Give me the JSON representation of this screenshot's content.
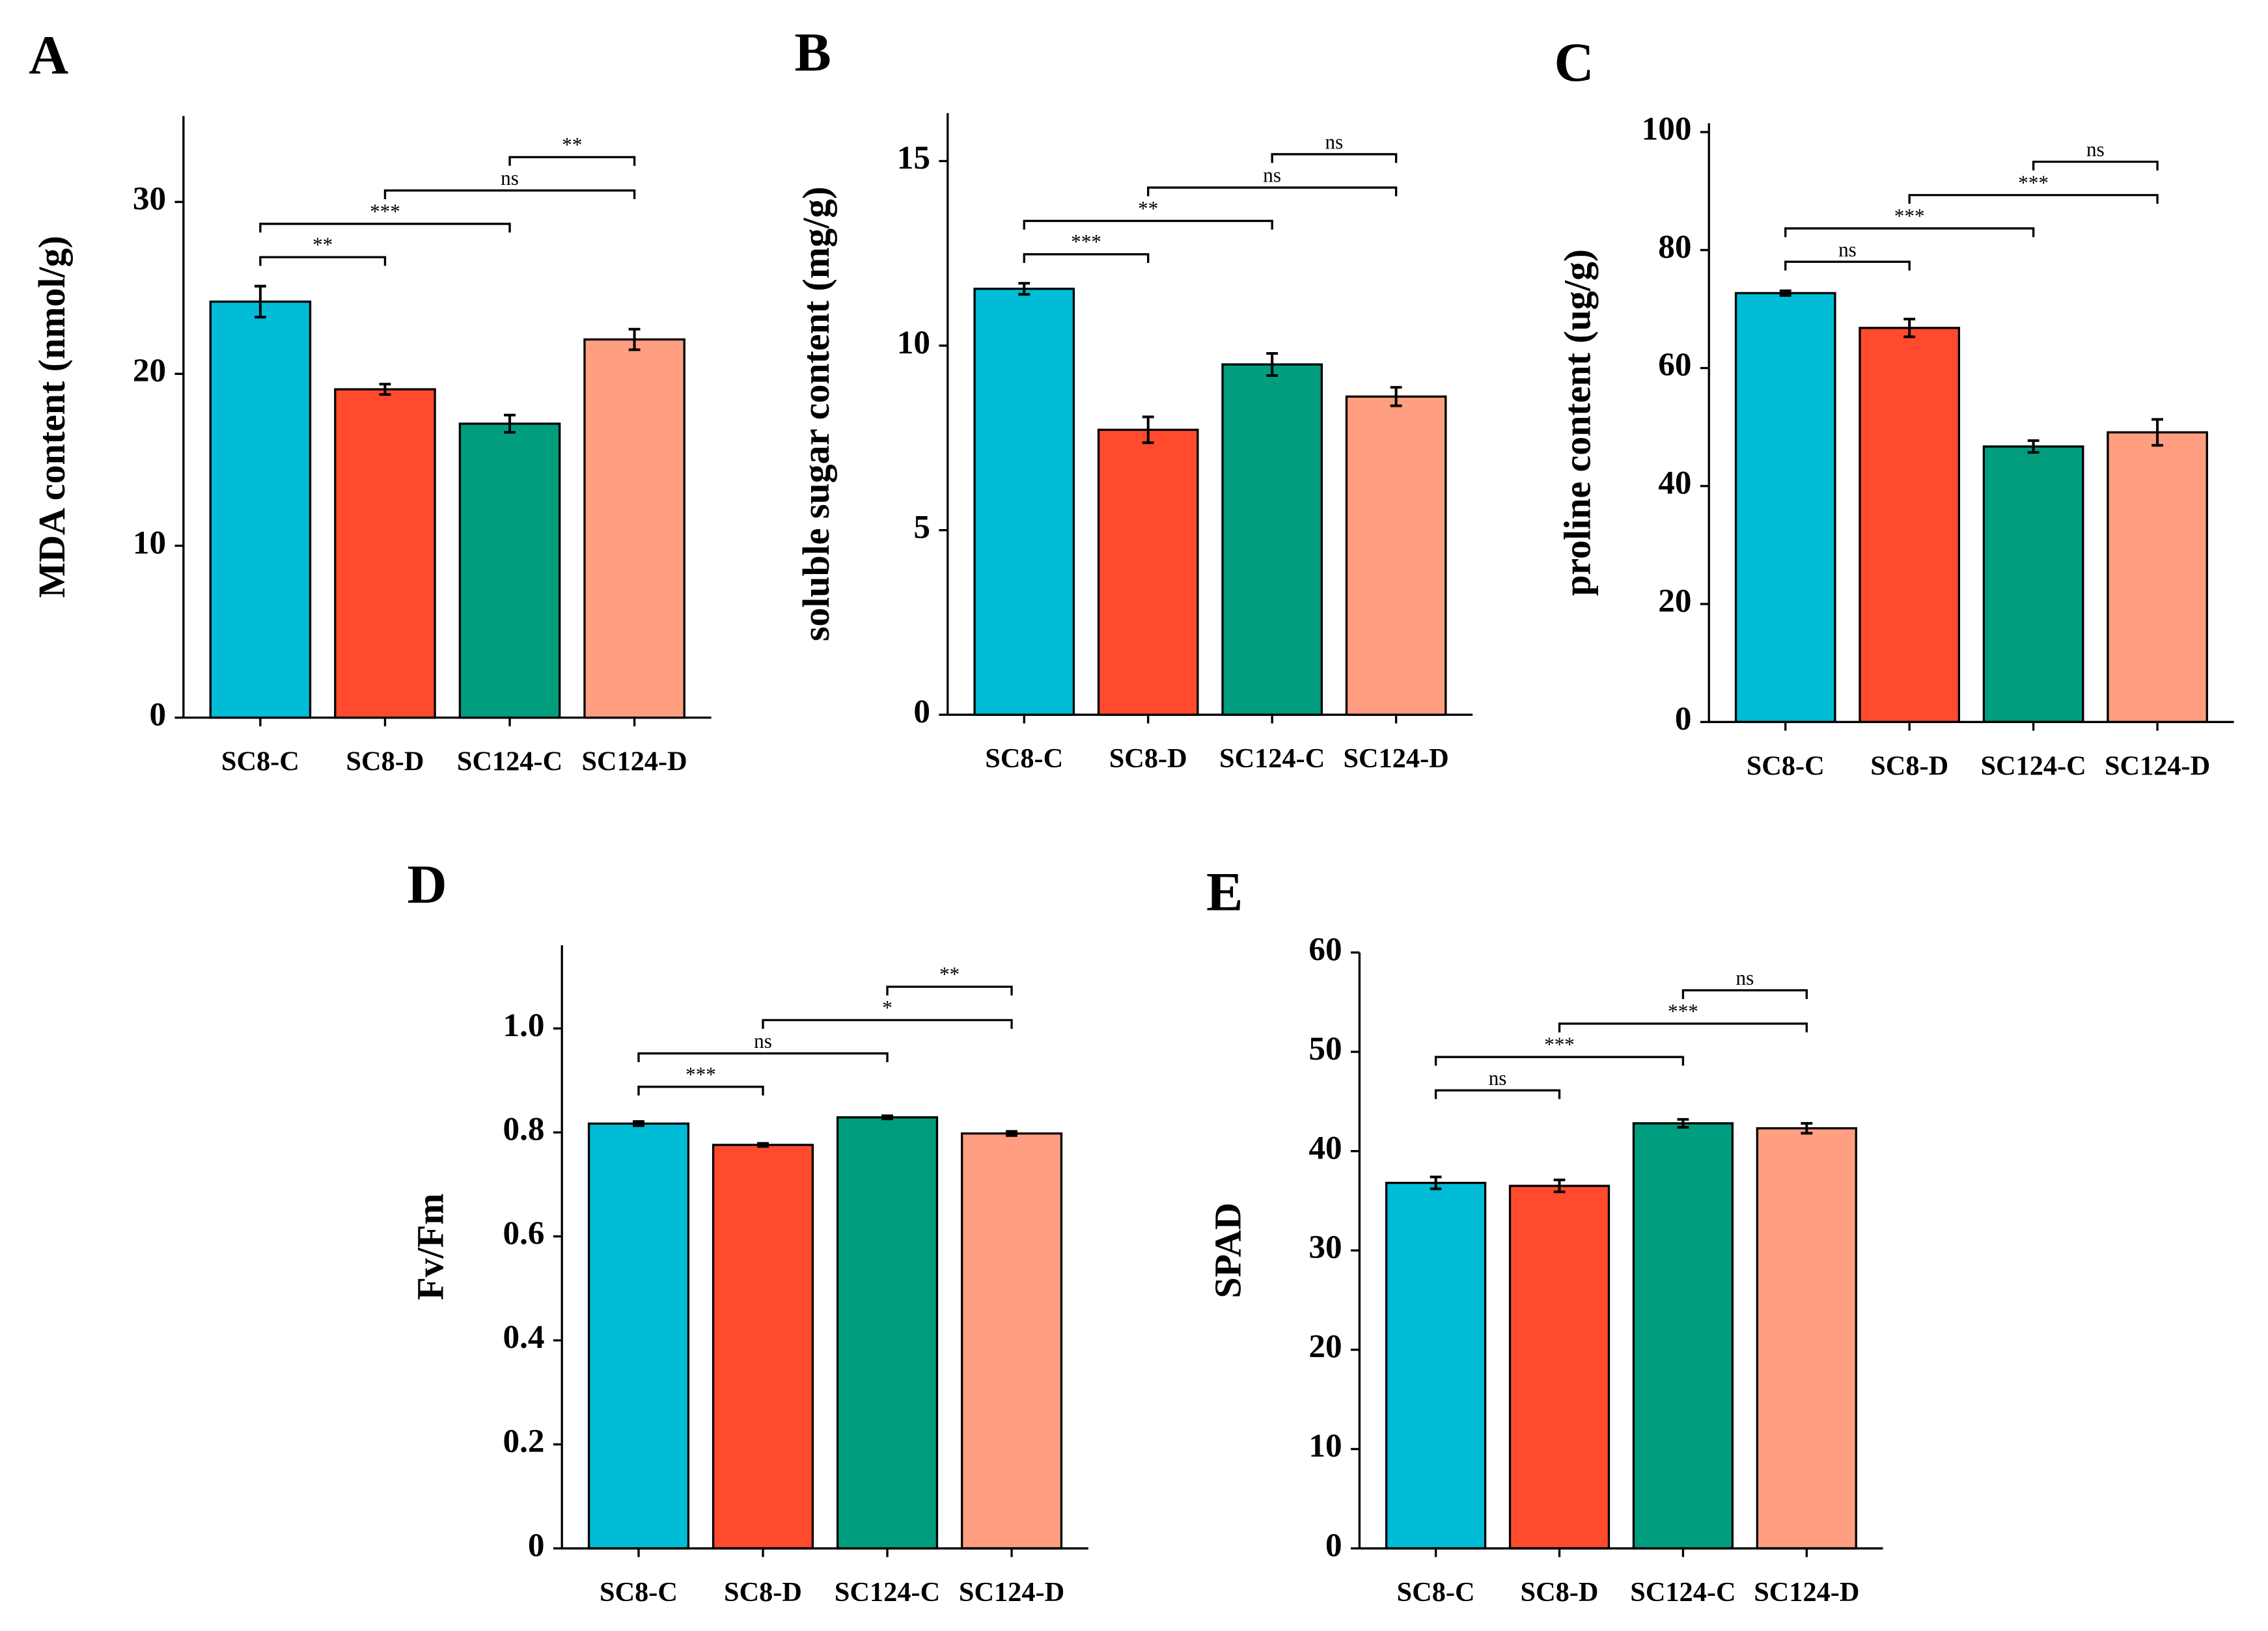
{
  "chart_data": [
    {
      "type": "bar",
      "panel_label": "A",
      "y_label": "MDA content (nmol/g)",
      "categories": [
        "SC8-C",
        "SC8-D",
        "SC124-C",
        "SC124-D"
      ],
      "values": [
        24.2,
        19.1,
        17.1,
        22.0
      ],
      "errors": [
        0.9,
        0.3,
        0.5,
        0.6
      ],
      "colors": [
        "#00BCD6",
        "#FF4A2E",
        "#009E7F",
        "#FF9E80"
      ],
      "ylim": [
        0,
        35
      ],
      "yticks": [
        0,
        10,
        20,
        30
      ],
      "comparisons": [
        {
          "pair": [
            "SC8-C",
            "SC8-D"
          ],
          "label": "**"
        },
        {
          "pair": [
            "SC8-C",
            "SC124-C"
          ],
          "label": "***"
        },
        {
          "pair": [
            "SC8-D",
            "SC124-D"
          ],
          "label": "ns"
        },
        {
          "pair": [
            "SC124-C",
            "SC124-D"
          ],
          "label": "**"
        }
      ]
    },
    {
      "type": "bar",
      "panel_label": "B",
      "y_label": "soluble sugar content (mg/g)",
      "categories": [
        "SC8-C",
        "SC8-D",
        "SC124-C",
        "SC124-D"
      ],
      "values": [
        11.54,
        7.72,
        9.49,
        8.62
      ],
      "errors": [
        0.15,
        0.35,
        0.3,
        0.25
      ],
      "colors": [
        "#00BCD6",
        "#FF4A2E",
        "#009E7F",
        "#FF9E80"
      ],
      "ylim": [
        0,
        16.3
      ],
      "yticks": [
        0,
        5,
        10,
        15
      ],
      "comparisons": [
        {
          "pair": [
            "SC8-C",
            "SC8-D"
          ],
          "label": "***"
        },
        {
          "pair": [
            "SC8-C",
            "SC124-C"
          ],
          "label": "**"
        },
        {
          "pair": [
            "SC8-D",
            "SC124-D"
          ],
          "label": "ns"
        },
        {
          "pair": [
            "SC124-C",
            "SC124-D"
          ],
          "label": "ns"
        }
      ]
    },
    {
      "type": "bar",
      "panel_label": "C",
      "y_label": "proline content (ug/g)",
      "categories": [
        "SC8-C",
        "SC8-D",
        "SC124-C",
        "SC124-D"
      ],
      "values": [
        72.7,
        66.8,
        46.7,
        49.1
      ],
      "errors": [
        0.4,
        1.5,
        1.0,
        2.2
      ],
      "colors": [
        "#00BCD6",
        "#FF4A2E",
        "#009E7F",
        "#FF9E80"
      ],
      "ylim": [
        0,
        101.5
      ],
      "yticks": [
        0,
        20,
        40,
        60,
        80,
        100
      ],
      "comparisons": [
        {
          "pair": [
            "SC8-C",
            "SC8-D"
          ],
          "label": "ns"
        },
        {
          "pair": [
            "SC8-C",
            "SC124-C"
          ],
          "label": "***"
        },
        {
          "pair": [
            "SC8-D",
            "SC124-D"
          ],
          "label": "***"
        },
        {
          "pair": [
            "SC124-C",
            "SC124-D"
          ],
          "label": "ns"
        }
      ]
    },
    {
      "type": "bar",
      "panel_label": "D",
      "y_label": "Fv/Fm",
      "categories": [
        "SC8-C",
        "SC8-D",
        "SC124-C",
        "SC124-D"
      ],
      "values": [
        0.817,
        0.776,
        0.829,
        0.798
      ],
      "errors": [
        0.004,
        0.003,
        0.003,
        0.004
      ],
      "colors": [
        "#00BCD6",
        "#FF4A2E",
        "#009E7F",
        "#FF9E80"
      ],
      "ylim": [
        0,
        1.16
      ],
      "yticks": [
        0,
        0.2,
        0.4,
        0.6,
        0.8,
        {
          "value": 1.0,
          "label": "1.0"
        }
      ],
      "comparisons": [
        {
          "pair": [
            "SC8-C",
            "SC8-D"
          ],
          "label": "***"
        },
        {
          "pair": [
            "SC8-C",
            "SC124-C"
          ],
          "label": "ns"
        },
        {
          "pair": [
            "SC8-D",
            "SC124-D"
          ],
          "label": "*"
        },
        {
          "pair": [
            "SC124-C",
            "SC124-D"
          ],
          "label": "**"
        }
      ]
    },
    {
      "type": "bar",
      "panel_label": "E",
      "y_label": "SPAD",
      "categories": [
        "SC8-C",
        "SC8-D",
        "SC124-C",
        "SC124-D"
      ],
      "values": [
        36.8,
        36.5,
        42.8,
        42.3
      ],
      "errors": [
        0.6,
        0.6,
        0.4,
        0.5
      ],
      "colors": [
        "#00BCD6",
        "#FF4A2E",
        "#009E7F",
        "#FF9E80"
      ],
      "ylim": [
        0,
        60
      ],
      "yticks": [
        0,
        10,
        20,
        30,
        40,
        50,
        60
      ],
      "comparisons": [
        {
          "pair": [
            "SC8-C",
            "SC8-D"
          ],
          "label": "ns"
        },
        {
          "pair": [
            "SC8-C",
            "SC124-C"
          ],
          "label": "***"
        },
        {
          "pair": [
            "SC8-D",
            "SC124-D"
          ],
          "label": "***"
        },
        {
          "pair": [
            "SC124-C",
            "SC124-D"
          ],
          "label": "ns"
        }
      ]
    }
  ]
}
